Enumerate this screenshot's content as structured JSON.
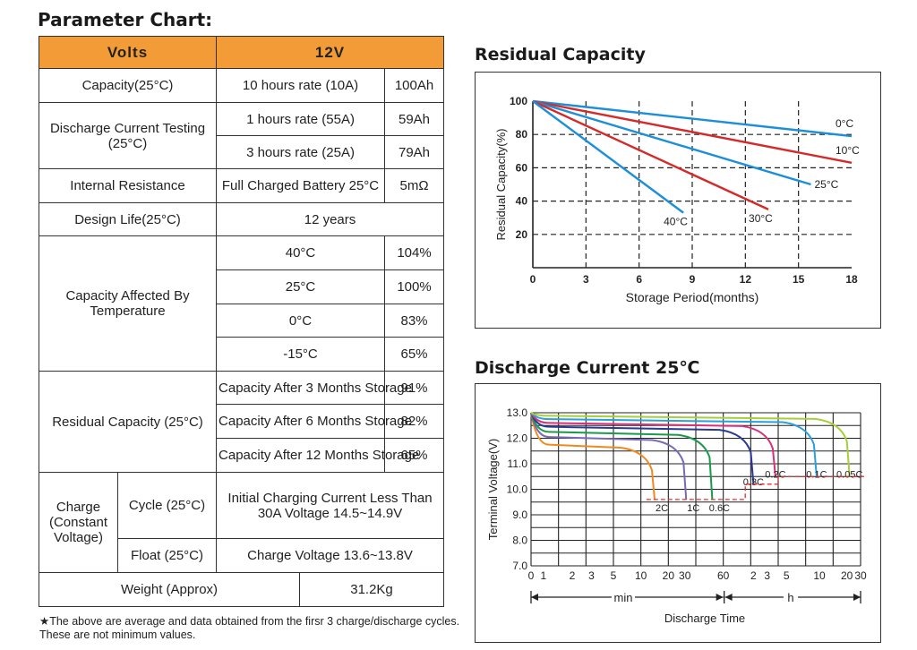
{
  "params": {
    "title": "Parameter Chart:",
    "header": {
      "left": "Volts",
      "right": "12V"
    },
    "capacity": {
      "label": "Capacity(25°C)",
      "rate": "10 hours rate (10A)",
      "value": "100Ah"
    },
    "discharge": {
      "label": "Discharge Current Testing (25°C)",
      "rows": [
        {
          "rate": "1 hours rate (55A)",
          "value": "59Ah"
        },
        {
          "rate": "3 hours rate (25A)",
          "value": "79Ah"
        }
      ]
    },
    "internal": {
      "label": "Internal Resistance",
      "desc": "Full Charged Battery 25°C",
      "value": "5mΩ"
    },
    "design_life": {
      "label": "Design Life(25°C)",
      "value": "12 years"
    },
    "temperature": {
      "label": "Capacity Affected By Temperature",
      "rows": [
        {
          "temp": "40°C",
          "value": "104%"
        },
        {
          "temp": "25°C",
          "value": "100%"
        },
        {
          "temp": "0°C",
          "value": "83%"
        },
        {
          "temp": "-15°C",
          "value": "65%"
        }
      ]
    },
    "residual": {
      "label": "Residual Capacity (25°C)",
      "rows": [
        {
          "desc": "Capacity After 3 Months Storage",
          "value": "91%"
        },
        {
          "desc": "Capacity After 6 Months Storage",
          "value": "82%"
        },
        {
          "desc": "Capacity After 12 Months Storage",
          "value": "65%"
        }
      ]
    },
    "charge": {
      "label": "Charge (Constant Voltage)",
      "cycle": {
        "label": "Cycle (25°C)",
        "desc": "Initial Charging Current Less Than 30A Voltage 14.5~14.9V"
      },
      "float": {
        "label": "Float (25°C)",
        "desc": "Charge Voltage 13.6~13.8V"
      }
    },
    "weight": {
      "label": "Weight (Approx)",
      "value": "31.2Kg"
    }
  },
  "footnote": "★The above are average and data obtained from the firsr 3 charge/discharge cycles. These are not minimum values.",
  "chart_data": [
    {
      "type": "line",
      "title": "Residual Capacity",
      "xlabel": "Storage Period(months)",
      "ylabel": "Residual Capacity(%)",
      "xlim": [
        0,
        18
      ],
      "ylim": [
        0,
        100
      ],
      "xticks": [
        0,
        3,
        6,
        9,
        12,
        15,
        18
      ],
      "yticks": [
        20,
        40,
        60,
        80,
        100
      ],
      "grid": "dashed",
      "series": [
        {
          "name": "0°C",
          "color": "#1c8fd8",
          "x": [
            0,
            18
          ],
          "y": [
            100,
            79
          ]
        },
        {
          "name": "10°C",
          "color": "#d42a2a",
          "x": [
            0,
            18
          ],
          "y": [
            100,
            63
          ]
        },
        {
          "name": "25°C",
          "color": "#1c8fd8",
          "x": [
            0,
            15.7
          ],
          "y": [
            100,
            50
          ]
        },
        {
          "name": "30°C",
          "color": "#d42a2a",
          "x": [
            0,
            13.3
          ],
          "y": [
            100,
            35
          ]
        },
        {
          "name": "40°C",
          "color": "#1c8fd8",
          "x": [
            0,
            8.5
          ],
          "y": [
            100,
            33
          ]
        }
      ]
    },
    {
      "type": "line",
      "title": "Discharge Current 25℃",
      "xlabel": "Discharge Time",
      "ylabel": "Terminal Voltage(V)",
      "ylim": [
        7.0,
        13.0
      ],
      "yticks": [
        "7.0",
        "8.0",
        "9.0",
        "10.0",
        "11.0",
        "12.0",
        "13.0"
      ],
      "xticks_min": [
        "0",
        "1",
        "2",
        "3",
        "5",
        "10",
        "20",
        "30",
        "60"
      ],
      "xticks_h": [
        "2",
        "3",
        "5",
        "10",
        "20",
        "30"
      ],
      "axis_groups": [
        "min",
        "h"
      ],
      "cutoff_color": "#e03030",
      "series": [
        {
          "name": "2C",
          "color": "#f08a1e",
          "end_v": 9.6
        },
        {
          "name": "1C",
          "color": "#7a68b8",
          "end_v": 9.6
        },
        {
          "name": "0.6C",
          "color": "#1a9a4a",
          "end_v": 9.6
        },
        {
          "name": "0.3C",
          "color": "#2a3a90",
          "end_v": 10.2
        },
        {
          "name": "0.2C",
          "color": "#d8307a",
          "end_v": 10.5
        },
        {
          "name": "0.1C",
          "color": "#28a0dc",
          "end_v": 10.5
        },
        {
          "name": "0.05C",
          "color": "#a8cf38",
          "end_v": 10.5
        }
      ]
    }
  ]
}
